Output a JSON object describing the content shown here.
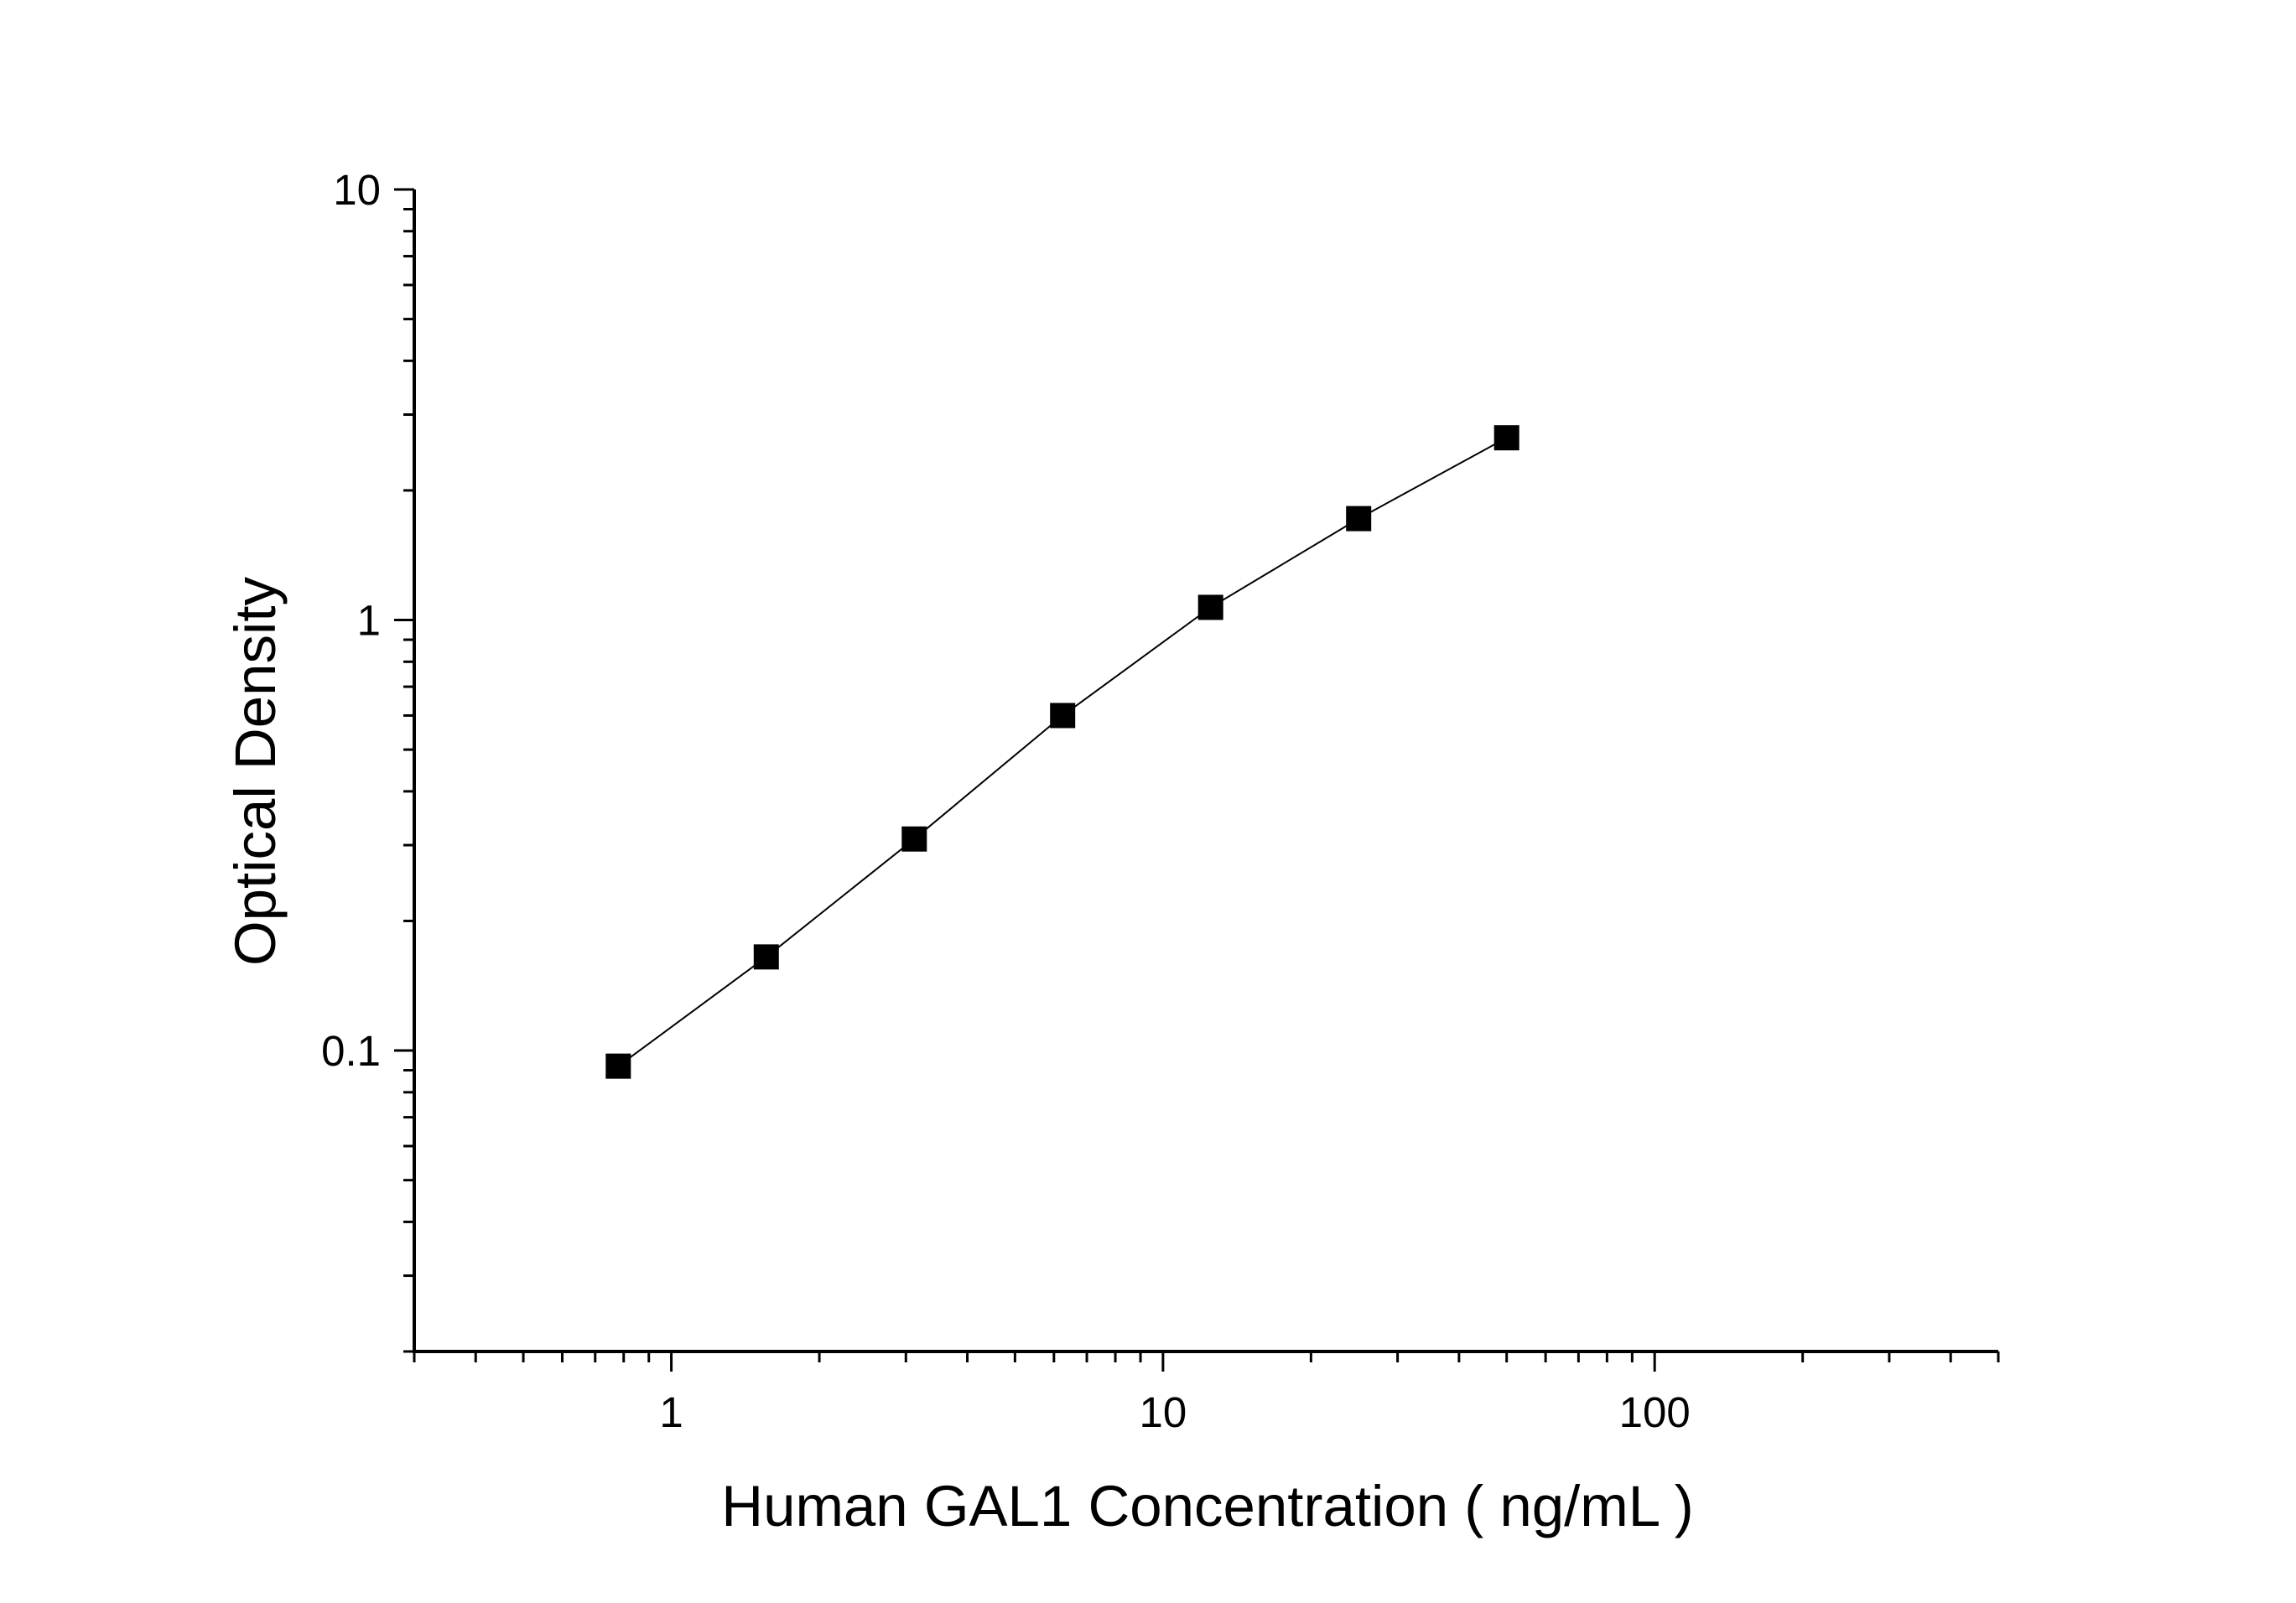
{
  "chart_data": {
    "type": "line",
    "title": "",
    "xlabel": "Human GAL1  Concentration ( ng/mL )",
    "ylabel": "Optical Density",
    "x_scale": "log",
    "y_scale": "log",
    "xlim": [
      0.3,
      500
    ],
    "ylim": [
      0.02,
      10
    ],
    "x_ticks": [
      1,
      10,
      100
    ],
    "x_tick_labels": [
      "1",
      "10",
      "100"
    ],
    "y_ticks": [
      0.1,
      1,
      10
    ],
    "y_tick_labels": [
      "0.1",
      "1",
      "10"
    ],
    "grid": false,
    "legend": "none",
    "series": [
      {
        "marker": "square",
        "color": "#000000",
        "x": [
          0.78,
          1.56,
          3.12,
          6.25,
          12.5,
          25,
          50
        ],
        "y": [
          0.092,
          0.165,
          0.31,
          0.6,
          1.07,
          1.72,
          2.65
        ]
      }
    ]
  }
}
